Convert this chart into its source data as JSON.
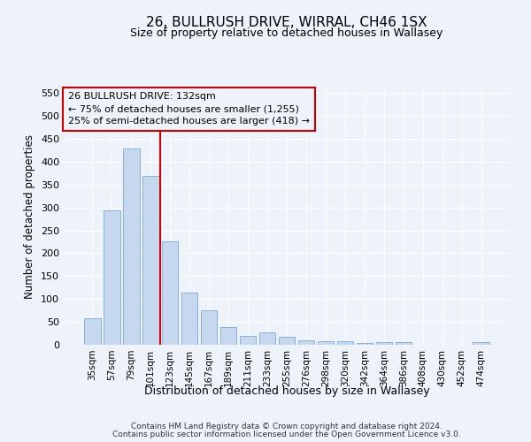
{
  "title1": "26, BULLRUSH DRIVE, WIRRAL, CH46 1SX",
  "title2": "Size of property relative to detached houses in Wallasey",
  "xlabel": "Distribution of detached houses by size in Wallasey",
  "ylabel": "Number of detached properties",
  "categories": [
    "35sqm",
    "57sqm",
    "79sqm",
    "101sqm",
    "123sqm",
    "145sqm",
    "167sqm",
    "189sqm",
    "211sqm",
    "233sqm",
    "255sqm",
    "276sqm",
    "298sqm",
    "320sqm",
    "342sqm",
    "364sqm",
    "386sqm",
    "408sqm",
    "430sqm",
    "452sqm",
    "474sqm"
  ],
  "values": [
    57,
    293,
    428,
    368,
    226,
    113,
    75,
    38,
    20,
    28,
    17,
    10,
    8,
    8,
    3,
    5,
    5,
    0,
    0,
    0,
    6
  ],
  "bar_color": "#c5d8f0",
  "bar_edge_color": "#7aaad4",
  "vline_color": "#cc0000",
  "vline_x": 3.5,
  "ann_line1": "26 BULLRUSH DRIVE: 132sqm",
  "ann_line2": "← 75% of detached houses are smaller (1,255)",
  "ann_line3": "25% of semi-detached houses are larger (418) →",
  "box_edge_color": "#cc0000",
  "ylim": [
    0,
    560
  ],
  "yticks": [
    0,
    50,
    100,
    150,
    200,
    250,
    300,
    350,
    400,
    450,
    500,
    550
  ],
  "bg_color": "#eef2fa",
  "grid_color": "#ffffff",
  "title1_fontsize": 11,
  "title2_fontsize": 9,
  "footer1": "Contains HM Land Registry data © Crown copyright and database right 2024.",
  "footer2": "Contains public sector information licensed under the Open Government Licence v3.0."
}
